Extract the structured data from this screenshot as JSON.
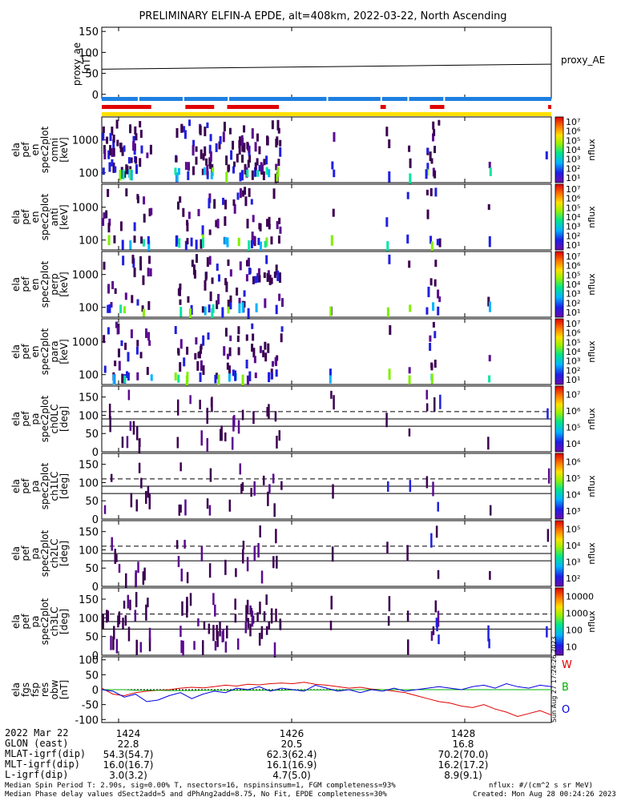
{
  "title": "PRELIMINARY ELFIN-A EPDE, alt=408km, 2022-03-22, North Ascending",
  "chart_data": [
    {
      "type": "line",
      "id": "proxy_ae",
      "ylabel": [
        "proxy_ae",
        "[nT]"
      ],
      "legend": "proxy_AE",
      "ylim": [
        -10,
        160
      ],
      "yticks": [
        "0",
        "50",
        "100",
        "150"
      ],
      "x": [
        0,
        0.25,
        0.5,
        0.75,
        1.0
      ],
      "series": [
        {
          "values": [
            60,
            63,
            66,
            69,
            72
          ],
          "color": "#000000"
        }
      ]
    },
    {
      "type": "bar",
      "id": "status_bars",
      "rows": [
        {
          "color": "#1e7fe0",
          "segments": [
            [
              0,
              1
            ]
          ]
        },
        {
          "color": "#e00000",
          "segments": [
            [
              0,
              0.11
            ],
            [
              0.186,
              0.25
            ],
            [
              0.279,
              0.394
            ],
            [
              0.62,
              0.632
            ],
            [
              0.73,
              0.762
            ],
            [
              0.993,
              1
            ]
          ]
        },
        {
          "color": "#ffe000",
          "segments": [
            [
              0,
              1
            ]
          ]
        }
      ]
    },
    {
      "type": "heatmap",
      "id": "ela_pef_en_spec2plot_omni",
      "ylabel": [
        "ela",
        "pef",
        "en",
        "spec2plot",
        "omni",
        "[keV]"
      ],
      "yscale": "log",
      "yticks": [
        "100",
        "1000"
      ],
      "colorbar": {
        "label": "nflux",
        "ticks": [
          "10¹",
          "10²",
          "10³",
          "10⁴",
          "10⁵",
          "10⁶",
          "10⁷"
        ]
      }
    },
    {
      "type": "heatmap",
      "id": "ela_pef_en_spec2plot_anti",
      "ylabel": [
        "ela",
        "pef",
        "en",
        "spec2plot",
        "anti",
        "[keV]"
      ],
      "yscale": "log",
      "yticks": [
        "100",
        "1000"
      ],
      "colorbar": {
        "label": "nflux",
        "ticks": [
          "10¹",
          "10²",
          "10³",
          "10⁴",
          "10⁵",
          "10⁶",
          "10⁷"
        ]
      }
    },
    {
      "type": "heatmap",
      "id": "ela_pef_en_spec2plot_perp",
      "ylabel": [
        "ela",
        "pef",
        "en",
        "spec2plot",
        "perp",
        "[keV]"
      ],
      "yscale": "log",
      "yticks": [
        "100",
        "1000"
      ],
      "colorbar": {
        "label": "nflux",
        "ticks": [
          "10¹",
          "10²",
          "10³",
          "10⁴",
          "10⁵",
          "10⁶",
          "10⁷"
        ]
      }
    },
    {
      "type": "heatmap",
      "id": "ela_pef_en_spec2plot_para",
      "ylabel": [
        "ela",
        "pef",
        "en",
        "spec2plot",
        "para",
        "[keV]"
      ],
      "yscale": "log",
      "yticks": [
        "100",
        "1000"
      ],
      "colorbar": {
        "label": "nflux",
        "ticks": [
          "10¹",
          "10²",
          "10³",
          "10⁴",
          "10⁵",
          "10⁶",
          "10⁷"
        ]
      }
    },
    {
      "type": "heatmap",
      "id": "ela_pef_pa_spec2plot_ch0LC",
      "ylabel": [
        "ela",
        "pef",
        "pa",
        "spec2plot",
        "ch0LC",
        "[deg]"
      ],
      "ylim": [
        0,
        180
      ],
      "yticks": [
        "0",
        "50",
        "100",
        "150"
      ],
      "reference_lines": [
        {
          "value": 110,
          "style": "dashed"
        },
        {
          "value": 90,
          "style": "solid"
        },
        {
          "value": 70,
          "style": "solid"
        }
      ],
      "colorbar": {
        "label": "nflux",
        "ticks": [
          "10⁴",
          "10⁵",
          "10⁶",
          "10⁷"
        ]
      }
    },
    {
      "type": "heatmap",
      "id": "ela_pef_pa_spec2plot_ch1LC",
      "ylabel": [
        "ela",
        "pef",
        "pa",
        "spec2plot",
        "ch1LC",
        "[deg]"
      ],
      "ylim": [
        0,
        180
      ],
      "yticks": [
        "0",
        "50",
        "100",
        "150"
      ],
      "reference_lines": [
        {
          "value": 110,
          "style": "dashed"
        },
        {
          "value": 90,
          "style": "solid"
        },
        {
          "value": 70,
          "style": "solid"
        }
      ],
      "colorbar": {
        "label": "nflux",
        "ticks": [
          "10³",
          "10⁴",
          "10⁵",
          "10⁶"
        ]
      }
    },
    {
      "type": "heatmap",
      "id": "ela_pef_pa_spec2plot_ch2LC",
      "ylabel": [
        "ela",
        "pef",
        "pa",
        "spec2plot",
        "ch2LC",
        "[deg]"
      ],
      "ylim": [
        0,
        180
      ],
      "yticks": [
        "0",
        "50",
        "100",
        "150"
      ],
      "reference_lines": [
        {
          "value": 110,
          "style": "dashed"
        },
        {
          "value": 90,
          "style": "solid"
        },
        {
          "value": 70,
          "style": "solid"
        }
      ],
      "colorbar": {
        "label": "nflux",
        "ticks": [
          "10²",
          "10³",
          "10⁴",
          "10⁵"
        ]
      }
    },
    {
      "type": "heatmap",
      "id": "ela_pef_pa_spec2plot_ch3LC",
      "ylabel": [
        "ela",
        "pef",
        "pa",
        "spec2plot",
        "ch3LC",
        "[deg]"
      ],
      "ylim": [
        0,
        180
      ],
      "yticks": [
        "0",
        "50",
        "100",
        "150"
      ],
      "reference_lines": [
        {
          "value": 110,
          "style": "dashed"
        },
        {
          "value": 90,
          "style": "solid"
        },
        {
          "value": 70,
          "style": "solid"
        }
      ],
      "colorbar": {
        "label": "nflux",
        "ticks": [
          "10",
          "100",
          "1000",
          "10000"
        ]
      }
    },
    {
      "type": "line",
      "id": "ela_fgs_fsp_res_obw",
      "ylabel": [
        "ela",
        "fgs",
        "fsp",
        "res",
        "obw",
        "[nT]"
      ],
      "ylim": [
        -110,
        110
      ],
      "yticks": [
        "-100",
        "-50",
        "0",
        "50",
        "100"
      ],
      "side_labels": [
        {
          "text": "W",
          "color": "#e00000"
        },
        {
          "text": "B",
          "color": "#00b000"
        },
        {
          "text": "O",
          "color": "#0000e0"
        }
      ],
      "series": [
        {
          "color": "#e00000",
          "values": [
            5,
            -15,
            -20,
            -10,
            -5,
            -2,
            0,
            5,
            8,
            6,
            10,
            15,
            12,
            18,
            16,
            20,
            22,
            20,
            25,
            18,
            15,
            10,
            5,
            8,
            2,
            0,
            -5,
            -10,
            -20,
            -30,
            -40,
            -45,
            -55,
            -60,
            -50,
            -65,
            -75,
            -90,
            -80,
            -70,
            -85
          ]
        },
        {
          "color": "#00b000",
          "values": [
            0,
            0,
            0,
            -2,
            -2,
            -2,
            -3,
            -3,
            -3,
            -2,
            -2,
            -2,
            -2,
            -2,
            -2,
            -2,
            -2,
            -1,
            -1,
            -1,
            -1,
            -1,
            0,
            0,
            0,
            0,
            0,
            0,
            0,
            0,
            0,
            0,
            0,
            0,
            0,
            0,
            0,
            0,
            0,
            0,
            0
          ]
        },
        {
          "color": "#0000e0",
          "values": [
            0,
            -5,
            -25,
            -15,
            -40,
            -35,
            -20,
            -10,
            -30,
            -15,
            -5,
            -10,
            5,
            0,
            10,
            -5,
            5,
            0,
            -5,
            15,
            5,
            -5,
            0,
            -10,
            0,
            -5,
            5,
            -5,
            0,
            5,
            10,
            5,
            0,
            10,
            15,
            5,
            20,
            10,
            5,
            15,
            10
          ]
        }
      ]
    }
  ],
  "x_axis": {
    "ticks": [
      "1424",
      "1426",
      "1428"
    ],
    "rows": [
      {
        "label": "2022 Mar 22",
        "values": [
          "1424",
          "1426",
          "1428"
        ]
      },
      {
        "label": "GLON (east)",
        "values": [
          "22.8",
          "20.5",
          "16.8"
        ]
      },
      {
        "label": "MLAT-igrf(dip)",
        "values": [
          "54.3(54.7)",
          "62.3(62.4)",
          "70.2(70.0)"
        ]
      },
      {
        "label": "MLT-igrf(dip)",
        "values": [
          "16.0(16.7)",
          "16.1(16.9)",
          "16.2(17.2)"
        ]
      },
      {
        "label": "L-igrf(dip)",
        "values": [
          "3.0(3.2)",
          "4.7(5.0)",
          "8.9(9.1)"
        ]
      }
    ]
  },
  "footer": {
    "left_line1": "Median Spin Period T: 2.90s, sig=0.00% T, nsectors=16, nspinsinsum=1, FGM completeness=93%",
    "left_line2": "Median Phase delay values dSect2add=5 and dPhAng2add=8.75, No Fit, EPDE completeness=30%",
    "right_line1": "nflux: #/(cm^2 s sr MeV)",
    "right_line2": "Created: Mon Aug 28 00:24:26 2023",
    "vertical_stamp": "Sun Aug 27 17:24:26 2023"
  }
}
